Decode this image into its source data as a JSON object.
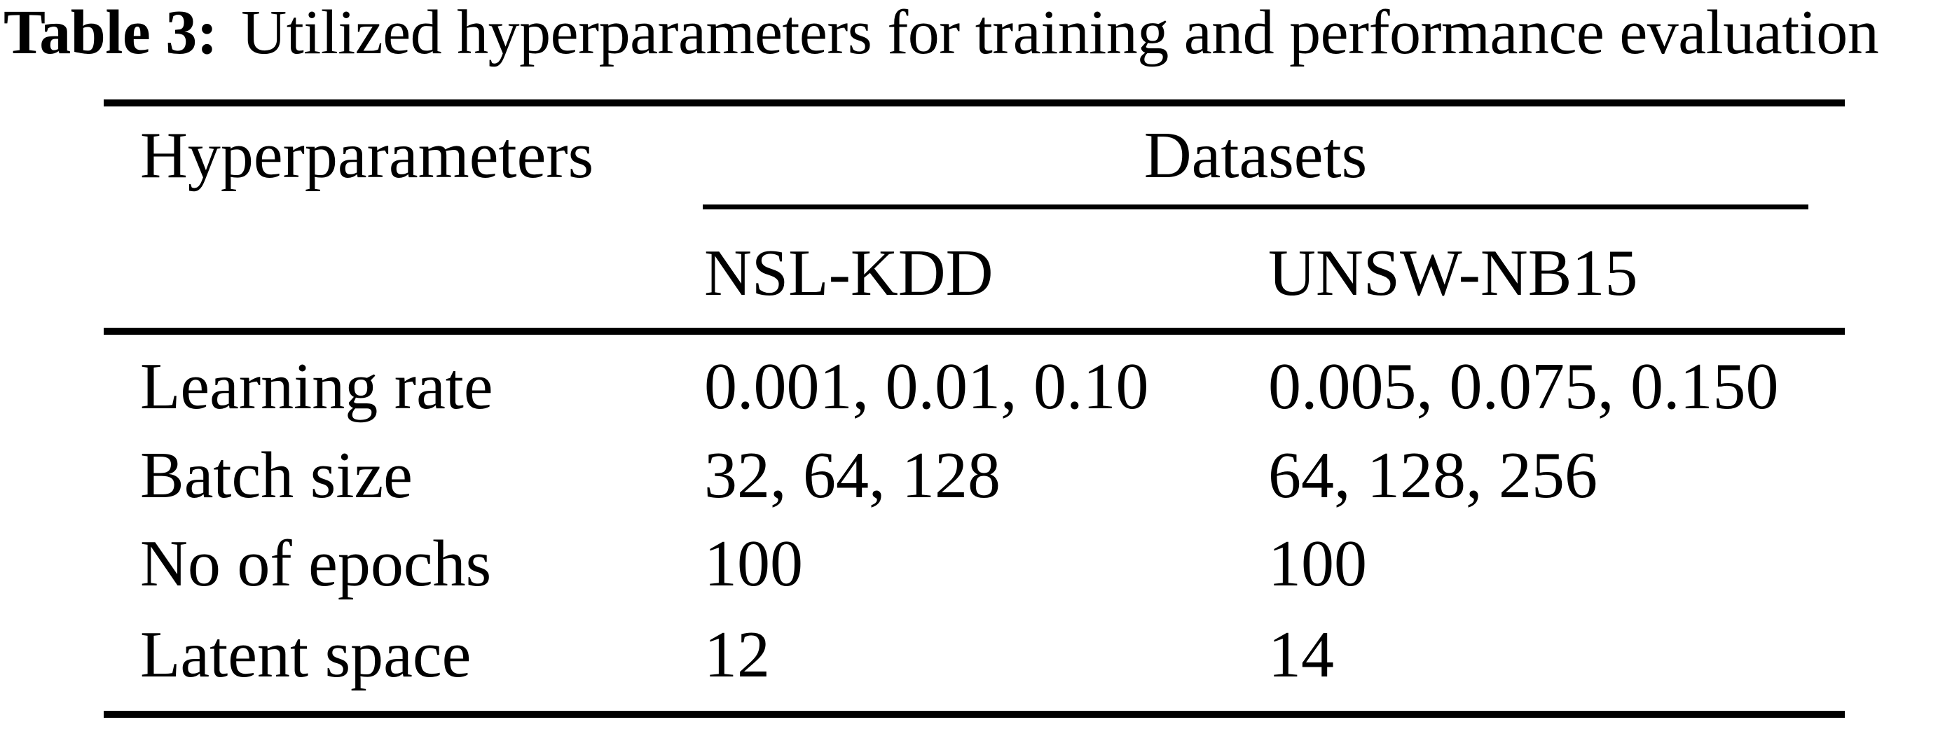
{
  "title": {
    "label": "Table 3:",
    "text": "Utilized hyperparameters for training and performance evaluation"
  },
  "table": {
    "columns": {
      "hyperparameters": "Hyperparameters",
      "datasets_group": "Datasets",
      "dataset1": "NSL-KDD",
      "dataset2": "UNSW-NB15"
    },
    "rows": [
      {
        "hyperparameter": "Learning rate",
        "nsl_kdd": "0.001, 0.01, 0.10",
        "unsw_nb15": "0.005, 0.075, 0.150"
      },
      {
        "hyperparameter": "Batch size",
        "nsl_kdd": "32, 64, 128",
        "unsw_nb15": "64, 128, 256"
      },
      {
        "hyperparameter": "No of epochs",
        "nsl_kdd": "100",
        "unsw_nb15": "100"
      },
      {
        "hyperparameter": "Latent space",
        "nsl_kdd": "12",
        "unsw_nb15": "14"
      }
    ],
    "colors": {
      "text": "#000000",
      "background": "#ffffff",
      "rule": "#000000"
    }
  }
}
